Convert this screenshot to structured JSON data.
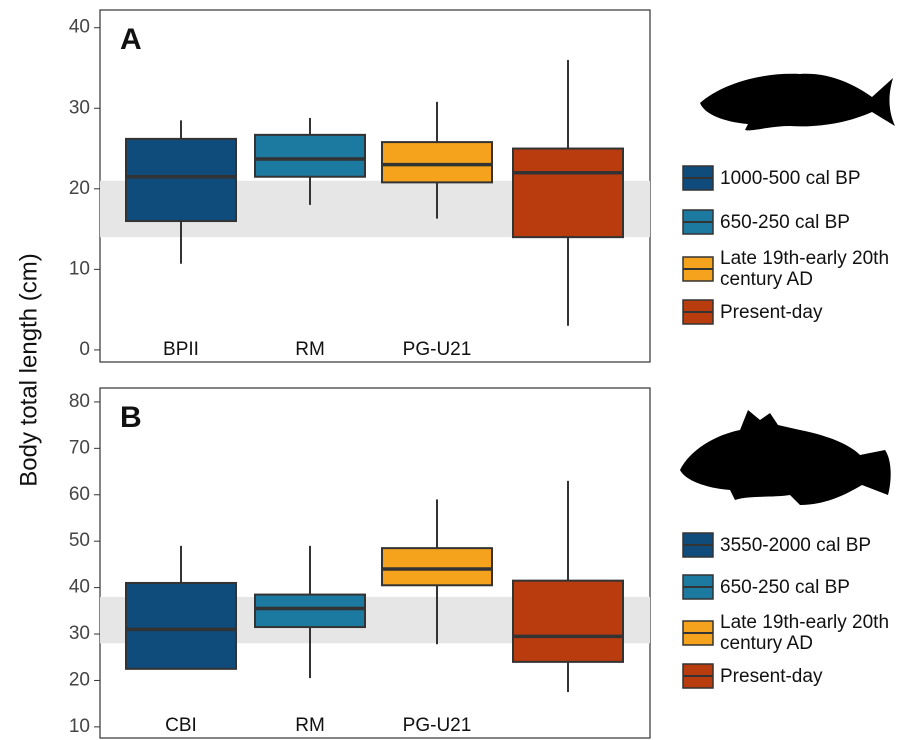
{
  "chart_data": [
    {
      "type": "box",
      "panel_label": "A",
      "y_label": "Body total length (cm)",
      "categories": [
        "BPII",
        "RM",
        "PG-U21",
        null
      ],
      "series": [
        {
          "name": "1000-500 cal BP",
          "color": "#0f4c7c",
          "min": 10.7,
          "q1": 16,
          "median": 21.5,
          "q3": 26.2,
          "max": 28.5
        },
        {
          "name": "650-250 cal BP",
          "color": "#1c7aa0",
          "min": 18,
          "q1": 21.5,
          "median": 23.7,
          "q3": 26.7,
          "max": 28.8
        },
        {
          "name": "Late 19th-early 20th century AD",
          "color": "#f5a31c",
          "min": 16.3,
          "q1": 20.8,
          "median": 23,
          "q3": 25.8,
          "max": 30.8
        },
        {
          "name": "Present-day",
          "color": "#b83c0e",
          "min": 3,
          "q1": 14,
          "median": 22,
          "q3": 25,
          "max": 36
        }
      ],
      "band": [
        14,
        21
      ],
      "ylim": [
        -1.5,
        42.2
      ],
      "yticks": [
        0,
        10,
        20,
        30,
        40
      ],
      "grid": false
    },
    {
      "type": "box",
      "panel_label": "B",
      "categories": [
        "CBI",
        "RM",
        "PG-U21",
        null
      ],
      "series": [
        {
          "name": "3550-2000 cal BP",
          "color": "#0f4c7c",
          "min": 22.5,
          "q1": 22.5,
          "median": 31,
          "q3": 41,
          "max": 49
        },
        {
          "name": "650-250 cal BP",
          "color": "#1c7aa0",
          "min": 20.5,
          "q1": 31.5,
          "median": 35.5,
          "q3": 38.5,
          "max": 49
        },
        {
          "name": "Late 19th-early 20th century AD",
          "color": "#f5a31c",
          "min": 27.8,
          "q1": 40.5,
          "median": 44,
          "q3": 48.5,
          "max": 59
        },
        {
          "name": "Present-day",
          "color": "#b83c0e",
          "min": 17.5,
          "q1": 24,
          "median": 29.5,
          "q3": 41.5,
          "max": 63
        }
      ],
      "band": [
        28,
        38
      ],
      "ylim": [
        7.6,
        83
      ],
      "yticks": [
        10,
        20,
        30,
        40,
        50,
        60,
        70,
        80
      ],
      "grid": false
    }
  ]
}
